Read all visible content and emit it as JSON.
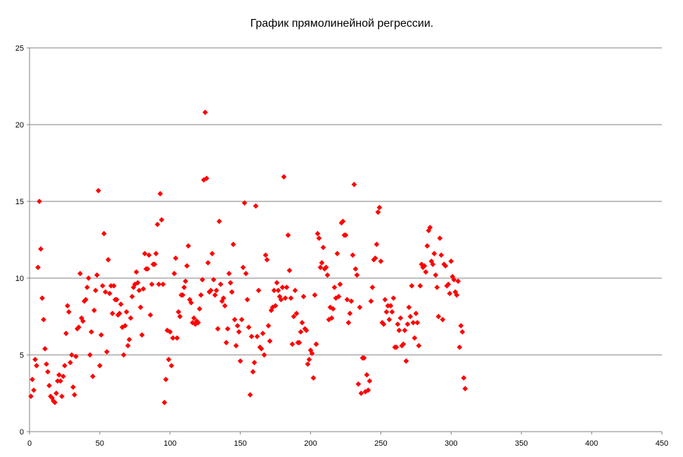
{
  "chart_data": {
    "type": "scatter",
    "title": "График прямолинейной регрессии.",
    "xlabel": "",
    "ylabel": "",
    "xlim": [
      0,
      450
    ],
    "ylim": [
      0,
      25
    ],
    "xticks": [
      0,
      50,
      100,
      150,
      200,
      250,
      300,
      350,
      400,
      450
    ],
    "yticks": [
      0,
      5,
      10,
      15,
      20,
      25
    ],
    "grid": "horizontal",
    "legend": "none",
    "marker_color": "#ff0000",
    "series": [
      {
        "points": [
          [
            1,
            2.3
          ],
          [
            2,
            3.4
          ],
          [
            3,
            2.7
          ],
          [
            4,
            4.7
          ],
          [
            5,
            4.3
          ],
          [
            6,
            10.7
          ],
          [
            7,
            15.0
          ],
          [
            8,
            11.9
          ],
          [
            9,
            8.7
          ],
          [
            10,
            7.3
          ],
          [
            11,
            5.4
          ],
          [
            12,
            4.4
          ],
          [
            13,
            3.9
          ],
          [
            14,
            3.0
          ],
          [
            15,
            2.3
          ],
          [
            16,
            2.2
          ],
          [
            17,
            2.0
          ],
          [
            18,
            1.9
          ],
          [
            19,
            2.5
          ],
          [
            20,
            3.3
          ],
          [
            21,
            3.7
          ],
          [
            22,
            3.3
          ],
          [
            23,
            2.3
          ],
          [
            24,
            3.6
          ],
          [
            25,
            4.3
          ],
          [
            26,
            6.4
          ],
          [
            27,
            8.2
          ],
          [
            28,
            7.8
          ],
          [
            29,
            4.5
          ],
          [
            30,
            5.0
          ],
          [
            31,
            2.9
          ],
          [
            32,
            2.4
          ],
          [
            33,
            4.9
          ],
          [
            34,
            6.7
          ],
          [
            35,
            6.8
          ],
          [
            36,
            10.3
          ],
          [
            37,
            7.4
          ],
          [
            38,
            7.2
          ],
          [
            39,
            8.5
          ],
          [
            40,
            8.6
          ],
          [
            41,
            9.4
          ],
          [
            42,
            10.0
          ],
          [
            43,
            5.0
          ],
          [
            44,
            6.5
          ],
          [
            45,
            3.6
          ],
          [
            46,
            7.9
          ],
          [
            47,
            9.2
          ],
          [
            48,
            10.2
          ],
          [
            49,
            15.7
          ],
          [
            50,
            4.3
          ],
          [
            51,
            6.3
          ],
          [
            52,
            9.5
          ],
          [
            53,
            12.9
          ],
          [
            54,
            9.1
          ],
          [
            55,
            5.2
          ],
          [
            56,
            11.2
          ],
          [
            57,
            9.0
          ],
          [
            58,
            9.5
          ],
          [
            59,
            7.7
          ],
          [
            60,
            9.5
          ],
          [
            61,
            8.6
          ],
          [
            62,
            8.6
          ],
          [
            63,
            7.6
          ],
          [
            64,
            7.7
          ],
          [
            65,
            8.3
          ],
          [
            66,
            6.8
          ],
          [
            67,
            5.0
          ],
          [
            68,
            6.9
          ],
          [
            69,
            7.8
          ],
          [
            70,
            5.6
          ],
          [
            71,
            6.0
          ],
          [
            72,
            7.4
          ],
          [
            73,
            8.8
          ],
          [
            74,
            9.4
          ],
          [
            75,
            9.6
          ],
          [
            76,
            10.4
          ],
          [
            77,
            9.7
          ],
          [
            78,
            9.2
          ],
          [
            79,
            8.1
          ],
          [
            80,
            6.3
          ],
          [
            81,
            9.3
          ],
          [
            82,
            11.6
          ],
          [
            83,
            10.6
          ],
          [
            84,
            10.6
          ],
          [
            85,
            11.5
          ],
          [
            86,
            7.6
          ],
          [
            87,
            9.6
          ],
          [
            88,
            10.9
          ],
          [
            89,
            10.9
          ],
          [
            90,
            11.6
          ],
          [
            91,
            13.5
          ],
          [
            92,
            9.6
          ],
          [
            93,
            15.5
          ],
          [
            94,
            13.8
          ],
          [
            95,
            9.6
          ],
          [
            96,
            1.9
          ],
          [
            97,
            3.4
          ],
          [
            98,
            6.6
          ],
          [
            99,
            4.7
          ],
          [
            100,
            6.5
          ],
          [
            101,
            4.3
          ],
          [
            102,
            6.1
          ],
          [
            103,
            10.3
          ],
          [
            104,
            11.3
          ],
          [
            105,
            6.1
          ],
          [
            106,
            7.8
          ],
          [
            107,
            7.5
          ],
          [
            108,
            8.9
          ],
          [
            109,
            8.9
          ],
          [
            110,
            9.4
          ],
          [
            111,
            9.8
          ],
          [
            112,
            10.8
          ],
          [
            113,
            12.1
          ],
          [
            114,
            8.6
          ],
          [
            115,
            8.4
          ],
          [
            116,
            7.1
          ],
          [
            117,
            7.4
          ],
          [
            118,
            7.0
          ],
          [
            119,
            7.2
          ],
          [
            120,
            7.1
          ],
          [
            121,
            8.0
          ],
          [
            122,
            8.9
          ],
          [
            123,
            9.9
          ],
          [
            124,
            16.4
          ],
          [
            125,
            20.8
          ],
          [
            126,
            16.5
          ],
          [
            127,
            11.0
          ],
          [
            128,
            9.1
          ],
          [
            129,
            9.2
          ],
          [
            130,
            11.6
          ],
          [
            131,
            9.9
          ],
          [
            132,
            8.9
          ],
          [
            133,
            9.2
          ],
          [
            134,
            6.7
          ],
          [
            135,
            13.7
          ],
          [
            136,
            9.6
          ],
          [
            137,
            8.5
          ],
          [
            138,
            8.7
          ],
          [
            139,
            8.2
          ],
          [
            140,
            5.8
          ],
          [
            141,
            6.7
          ],
          [
            142,
            10.3
          ],
          [
            143,
            9.7
          ],
          [
            144,
            9.1
          ],
          [
            145,
            12.2
          ],
          [
            146,
            7.3
          ],
          [
            147,
            5.6
          ],
          [
            148,
            6.9
          ],
          [
            149,
            6.5
          ],
          [
            150,
            4.6
          ],
          [
            151,
            7.3
          ],
          [
            152,
            10.7
          ],
          [
            153,
            14.9
          ],
          [
            154,
            10.3
          ],
          [
            155,
            8.6
          ],
          [
            156,
            6.8
          ],
          [
            157,
            2.4
          ],
          [
            158,
            6.2
          ],
          [
            159,
            3.9
          ],
          [
            160,
            4.5
          ],
          [
            161,
            14.7
          ],
          [
            162,
            6.2
          ],
          [
            163,
            9.2
          ],
          [
            164,
            5.5
          ],
          [
            165,
            5.4
          ],
          [
            166,
            6.4
          ],
          [
            167,
            5.0
          ],
          [
            168,
            11.5
          ],
          [
            169,
            11.2
          ],
          [
            170,
            6.9
          ],
          [
            171,
            5.9
          ],
          [
            172,
            7.9
          ],
          [
            173,
            8.1
          ],
          [
            174,
            9.2
          ],
          [
            175,
            8.2
          ],
          [
            176,
            9.7
          ],
          [
            177,
            9.2
          ],
          [
            178,
            8.8
          ],
          [
            179,
            8.6
          ],
          [
            180,
            9.4
          ],
          [
            181,
            16.6
          ],
          [
            182,
            8.7
          ],
          [
            183,
            9.4
          ],
          [
            184,
            12.8
          ],
          [
            185,
            10.5
          ],
          [
            186,
            8.7
          ],
          [
            187,
            5.7
          ],
          [
            188,
            7.5
          ],
          [
            189,
            9.2
          ],
          [
            190,
            7.7
          ],
          [
            191,
            5.8
          ],
          [
            192,
            5.8
          ],
          [
            193,
            6.5
          ],
          [
            194,
            7.1
          ],
          [
            195,
            8.8
          ],
          [
            196,
            6.7
          ],
          [
            197,
            6.6
          ],
          [
            198,
            4.4
          ],
          [
            199,
            4.7
          ],
          [
            200,
            5.3
          ],
          [
            201,
            5.1
          ],
          [
            202,
            3.5
          ],
          [
            203,
            8.9
          ],
          [
            204,
            5.7
          ],
          [
            205,
            12.9
          ],
          [
            206,
            12.6
          ],
          [
            207,
            10.7
          ],
          [
            208,
            11.0
          ],
          [
            209,
            12.0
          ],
          [
            210,
            10.6
          ],
          [
            211,
            10.7
          ],
          [
            212,
            10.2
          ],
          [
            213,
            7.3
          ],
          [
            214,
            8.1
          ],
          [
            215,
            7.4
          ],
          [
            216,
            8.0
          ],
          [
            217,
            9.4
          ],
          [
            218,
            8.7
          ],
          [
            219,
            11.6
          ],
          [
            220,
            8.8
          ],
          [
            221,
            9.6
          ],
          [
            222,
            13.6
          ],
          [
            223,
            13.7
          ],
          [
            224,
            12.8
          ],
          [
            225,
            12.8
          ],
          [
            226,
            8.6
          ],
          [
            227,
            7.1
          ],
          [
            228,
            7.7
          ],
          [
            229,
            8.5
          ],
          [
            230,
            11.5
          ],
          [
            231,
            16.1
          ],
          [
            232,
            10.6
          ],
          [
            233,
            10.2
          ],
          [
            234,
            3.1
          ],
          [
            235,
            8.1
          ],
          [
            236,
            2.5
          ],
          [
            237,
            4.8
          ],
          [
            238,
            4.8
          ],
          [
            239,
            2.6
          ],
          [
            240,
            3.7
          ],
          [
            241,
            2.7
          ],
          [
            242,
            3.3
          ],
          [
            243,
            8.5
          ],
          [
            244,
            9.4
          ],
          [
            245,
            11.2
          ],
          [
            246,
            11.3
          ],
          [
            247,
            12.2
          ],
          [
            248,
            14.3
          ],
          [
            249,
            14.6
          ],
          [
            250,
            11.1
          ],
          [
            251,
            7.1
          ],
          [
            252,
            7.0
          ],
          [
            253,
            8.6
          ],
          [
            254,
            7.8
          ],
          [
            255,
            8.2
          ],
          [
            256,
            7.3
          ],
          [
            257,
            8.2
          ],
          [
            258,
            7.8
          ],
          [
            259,
            8.7
          ],
          [
            260,
            5.5
          ],
          [
            261,
            5.5
          ],
          [
            262,
            7.0
          ],
          [
            263,
            6.6
          ],
          [
            264,
            7.4
          ],
          [
            265,
            5.6
          ],
          [
            266,
            5.7
          ],
          [
            267,
            6.6
          ],
          [
            268,
            4.6
          ],
          [
            269,
            7.0
          ],
          [
            270,
            8.1
          ],
          [
            271,
            7.5
          ],
          [
            272,
            9.5
          ],
          [
            273,
            7.1
          ],
          [
            274,
            6.1
          ],
          [
            275,
            7.7
          ],
          [
            276,
            7.1
          ],
          [
            277,
            5.6
          ],
          [
            278,
            9.5
          ],
          [
            279,
            10.9
          ],
          [
            280,
            10.7
          ],
          [
            281,
            10.8
          ],
          [
            282,
            10.4
          ],
          [
            283,
            12.1
          ],
          [
            284,
            13.1
          ],
          [
            285,
            13.3
          ],
          [
            286,
            11.1
          ],
          [
            287,
            10.9
          ],
          [
            288,
            11.6
          ],
          [
            289,
            10.2
          ],
          [
            290,
            9.4
          ],
          [
            291,
            7.5
          ],
          [
            292,
            12.6
          ],
          [
            293,
            11.5
          ],
          [
            294,
            7.3
          ],
          [
            295,
            10.9
          ],
          [
            296,
            10.8
          ],
          [
            297,
            9.5
          ],
          [
            298,
            9.6
          ],
          [
            299,
            9.0
          ],
          [
            300,
            11.1
          ],
          [
            301,
            10.1
          ],
          [
            302,
            9.9
          ],
          [
            303,
            9.1
          ],
          [
            304,
            8.9
          ],
          [
            305,
            9.8
          ],
          [
            306,
            5.5
          ],
          [
            307,
            6.9
          ],
          [
            308,
            6.5
          ],
          [
            309,
            3.5
          ],
          [
            310,
            2.8
          ]
        ]
      }
    ]
  }
}
